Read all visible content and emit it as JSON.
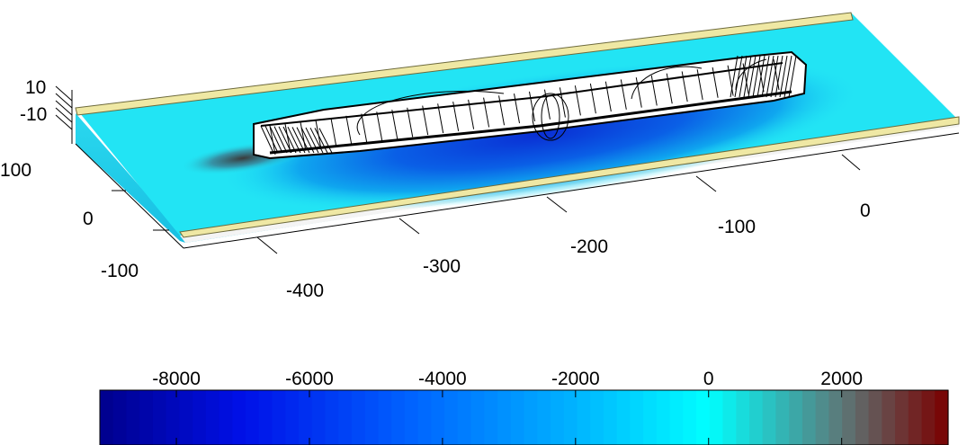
{
  "chart_data": [
    {
      "type": "surface-3d",
      "description_visible": "3D pressure surface on a channel with ship hull wireframe",
      "x_ticks": [
        "-400",
        "-300",
        "-200",
        "-100",
        "0"
      ],
      "y_ticks": [
        "-100",
        "0",
        "100"
      ],
      "z_ticks": [
        "10",
        "-10"
      ],
      "surface_colors": {
        "far": "#22e4f4",
        "mid": "#0a8bea",
        "deep": "#0a2fd4",
        "bank": "#efe8a4"
      }
    },
    {
      "type": "heatmap",
      "colorbar_ticks": [
        "-8000",
        "-6000",
        "-4000",
        "-2000",
        "0",
        "2000"
      ],
      "colorbar_tick_values": [
        -8000,
        -6000,
        -4000,
        -2000,
        0,
        2000
      ],
      "colorbar_range": [
        -9150,
        3600
      ],
      "colormap_stops": [
        {
          "value": -9150,
          "color": "#00008c"
        },
        {
          "value": -7000,
          "color": "#0010e8"
        },
        {
          "value": -4500,
          "color": "#0062ff"
        },
        {
          "value": -2000,
          "color": "#00b4ff"
        },
        {
          "value": 0,
          "color": "#00ffff"
        },
        {
          "value": 2000,
          "color": "#5c7878"
        },
        {
          "value": 3600,
          "color": "#7a0000"
        }
      ]
    }
  ]
}
